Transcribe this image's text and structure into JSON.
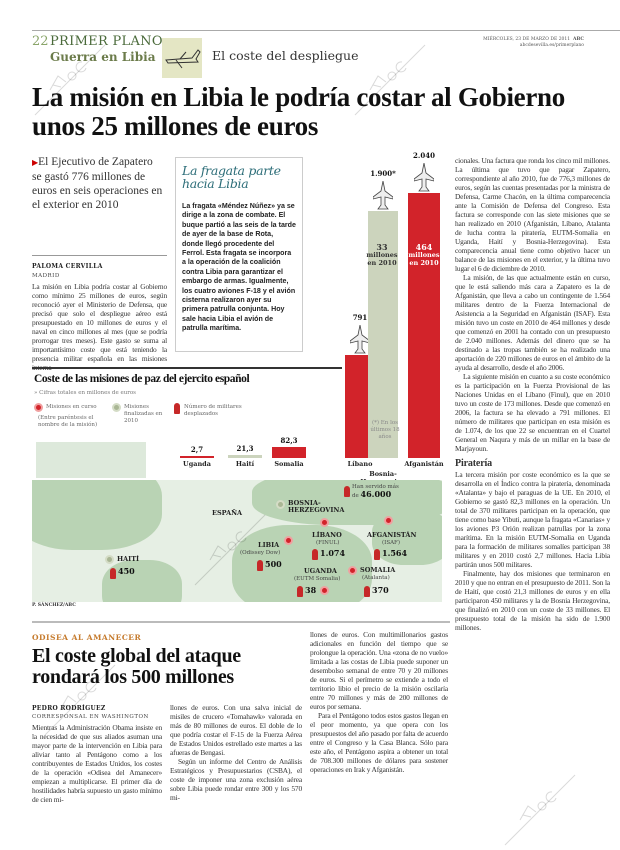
{
  "header": {
    "page_number": "22",
    "section": "PRIMER PLANO",
    "subsection": "Guerra en Libia",
    "topic": "El coste del despliegue",
    "date": "MIÉRCOLES, 23 DE MARZO DE 2011",
    "brand": "ABC",
    "url": "abcdesevilla.es/primerplano"
  },
  "main_article": {
    "headline": "La misión en Libia le podría costar al Gobierno unos 25 millones de euros",
    "lead": "El Ejecutivo de Zapatero se gastó 776 millones de euros en seis operaciones en el exterior en 2010",
    "author": "PALOMA CERVILLA",
    "location": "MADRID",
    "body_left": "La misión en Libia podría costar al Gobierno como mínimo 25 millones de euros, según reconoció ayer el Ministerio de Defensa, que precisó que solo el despliegue aéreo está presupuestado en 10 millones de euros y el naval en cinco millones al mes (que se podría prorrogar tres meses). Este gasto se suma al importantísimo coste que está teniendo la presencia militar española en las misiones interna-",
    "body_right": [
      "cionales. Una factura que ronda los cinco mil millones. La última que tuvo que pagar Zapatero, correspondiente al año 2010, fue de 776,3 millones de euros, según las cuentas presentadas por la ministra de Defensa, Carme Chacón, en la última comparecencia ante la Comisión de Defensa del Congreso. Esta factura se corresponde con las siete misiones que se han realizado en 2010 (Afganistán, Líbano, Atalanta de lucha contra la piratería, EUTM-Somalia en Uganda, Haití y Bosnia-Herzegovina). Esta comparecencia anual tiene como objetivo hacer un balance de las misiones en el exterior, y la última tuvo lugar el 6 de diciembre de 2010.",
      "La misión, de las que actualmente están en curso, que le está saliendo más cara a Zapatero es la de Afganistán, que lleva a cabo un contingente de 1.564 militares dentro de la Fuerza Internacional de Asistencia a la Seguridad en Afganistán (ISAF). Esta misión tuvo un coste en 2010 de 464 millones y desde que comenzó en 2001 ha contado con un presupuesto de 2.040 millones. Además del dinero que se ha destinado a las tropas también se ha realizado una aportación de 220 millones de euros en el ámbito de la ayuda al desarrollo, desde el año 2006.",
      "La siguiente misión en cuanto a su coste económico es la participación en la Fuerza Provisional de las Naciones Unidas en el Líbano (Finul), que en 2010 tuvo un coste de 173 millones. Desde que comenzó en 2006, la factura se ha elevado a 791 millones. El número de militares que participan en esta misión es de 1.074, de los que 22 se encuentran en el Cuartel General en Naqura y más de un millar en la base de Marjayoun."
    ],
    "subhead": "Piratería",
    "body_right_2": [
      "La tercera misión por coste económico es la que se desarrolla en el Índico contra la piratería, denominada «Atalanta» y bajo el paraguas de la UE. En 2010, el Gobierno se gastó 82,3 millones en la operación. Un total de 370 militares participan en la operación, que tiene como base Yibuti, aunque la fragata «Canarias» y los aviones P3 Orión realizan patrullas por la zona marítima. En la misión EUTM-Somalia en Uganda para la formación de militares somalíes participan 38 militares y en 2010 costó 2,7 millones. Hacia Libia partirán unos 500 militares.",
      "Finalmente, hay dos misiones que terminaron en 2010 y que no entran en el presupuesto de 2011. Son la de Haití, que costó 21,3 millones de euros y en ella participaron 450 militares y la de Bosnia Herzegovina, que finalizó en 2010 con un coste de 33 millones. El presupuesto total de la misión ha sido de 1.900 millones."
    ]
  },
  "sidebar_box": {
    "title": "La fragata parte hacia Libia",
    "text": "La fragata «Méndez Núñez» ya se dirige a la zona de combate. El buque partió a las seis de la tarde de ayer de la base de Rota, donde llegó procedente del Ferrol. Esta fragata se incorpora a la operación de la coalición contra Libia para garantizar el embargo de armas. Igualmente, los cuatro aviones F-18 y el avión cisterna realizaron ayer su primera patrulla conjunta. Hoy sale hacia Libia el avión de patrulla marítima."
  },
  "chart_data": {
    "type": "bar",
    "title": "Coste de las misiones de paz del ejercito español",
    "subtitle": "Cifras totales en millones de euros",
    "categories": [
      "Uganda",
      "Haití",
      "Somalia",
      "Líbano",
      "Bosnia-Herzegovina",
      "Afganistán"
    ],
    "values": [
      2.7,
      21.3,
      82.3,
      791,
      1900,
      2040
    ],
    "value_labels": [
      "2,7",
      "21,3",
      "82,3",
      "791",
      "1.900*",
      "2.040"
    ],
    "status": [
      "curso",
      "finalizada",
      "curso",
      "curso",
      "finalizada",
      "curso"
    ],
    "annotations": {
      "bosnia": [
        "33",
        "millones",
        "en 2010"
      ],
      "afganistan": [
        "464",
        "millones",
        "en 2010"
      ],
      "footnote": "(*) En los últimos 18 años"
    },
    "legend": {
      "ongoing": "Misiones en curso",
      "ongoing_note": "(Entre paréntesis el nombre de la misión)",
      "finished": "Misiones finalizadas en 2010",
      "troops": "Número de militares desplazados"
    },
    "colors": {
      "ongoing": "#d2232a",
      "finished": "#ccd4bd"
    }
  },
  "map": {
    "labels": {
      "spain": "ESPAÑA",
      "bosnia": "BOSNIA-HERZEGOVINA",
      "bosnia_note": "Han servido más de",
      "bosnia_troops": "46.000",
      "haiti": "HAITÍ",
      "haiti_troops": "450",
      "libia": "LIBIA",
      "libia_mission": "(Odissey Dow)",
      "libia_troops": "500",
      "libano": "LÍBANO",
      "libano_mission": "(FINUL)",
      "libano_troops": "1.074",
      "afganistan": "AFGANISTÁN",
      "afganistan_mission": "(ISAF)",
      "afganistan_troops": "1.564",
      "uganda": "UGANDA",
      "uganda_mission": "(EUTM Somalia)",
      "uganda_troops": "38",
      "somalia": "SOMALIA",
      "somalia_mission": "(Atalanta)",
      "somalia_troops": "370"
    },
    "credit": "P. SÁNCHEZ/ABC"
  },
  "second_article": {
    "kicker": "ODISEA AL AMANECER",
    "headline": "El coste global del ataque rondará los 500 millones",
    "author": "PEDRO RODRÍGUEZ",
    "location": "CORRESPONSAL EN WASHINGTON",
    "col1": "Mientras la Administración Obama insiste en la necesidad de que sus aliados asuman una mayor parte de la intervención en Libia para aliviar tanto al Pentágono como a los contribuyentes de Estados Unidos, los costes de la operación «Odisea del Amanecer» empiezan a multiplicarse. El primer día de hostilidades habría supuesto un gasto mínimo de cien mi-",
    "col2": [
      "llones de euros. Con una salva inicial de misiles de crucero «Tomahawk» valorada en más de 80 millones de euros. El doble de lo que podría costar el F-15 de la Fuerza Aérea de Estados Unidos estrellado este martes a las afueras de Bengasi.",
      "Según un informe del Centro de Análisis Estratégicos y Presupuestarios (CSBA), el coste de imponer una zona exclusión aérea sobre Libia puede rondar entre 300 y los 570 mi-"
    ],
    "col3": [
      "llones de euros. Con multimillonarios gastos adicionales en función del tiempo que se prolongue la operación. Una «zona de no vuelo» limitada a las costas de Libia puede suponer un desembolso semanal de entre 70 y 20 millones de euros. Si el perímetro se extiende a todo el territorio libio el precio de la misión oscilaría entre 70 millones y más de 200 millones de euros por semana.",
      "Para el Pentágono todos estos gastos llegan en el peor momento, ya que opera con los presupuestos del año pasado por falta de acuerdo entre el Congreso y la Casa Blanca. Sólo para este año, el Pentágono aspira a obtener un total de 708.300 millones de dólares para sostener operaciones en Irak y Afganistán."
    ]
  },
  "watermark": "ABC"
}
